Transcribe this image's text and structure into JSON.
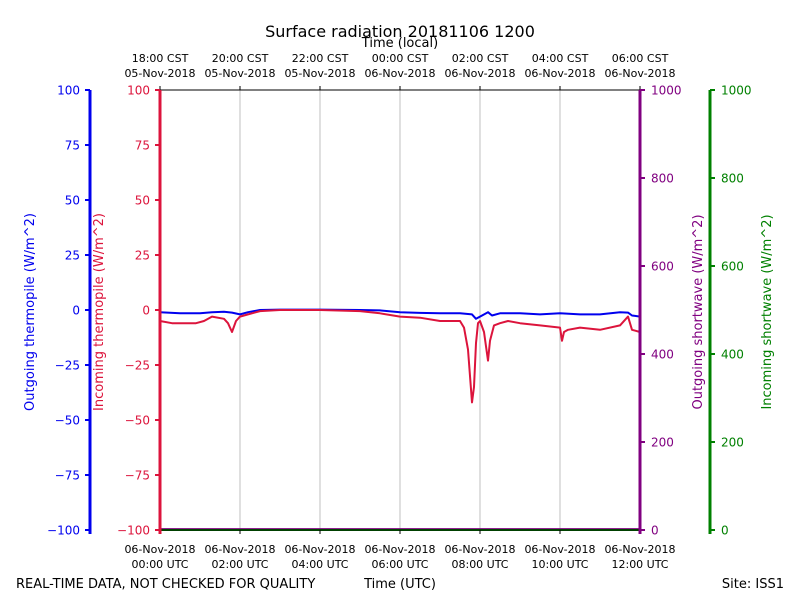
{
  "chart_data": {
    "type": "line",
    "title": "Surface radiation 20181106 1200",
    "top_axis_label": "Time (local)",
    "xlabel": "Time (UTC)",
    "footer_left": "REAL-TIME DATA, NOT CHECKED FOR QUALITY",
    "footer_right": "Site: ISS1",
    "x_hours_range": [
      0,
      12
    ],
    "top_ticks": [
      {
        "h": 0,
        "time": "18:00 CST",
        "date": "05-Nov-2018"
      },
      {
        "h": 2,
        "time": "20:00 CST",
        "date": "05-Nov-2018"
      },
      {
        "h": 4,
        "time": "22:00 CST",
        "date": "05-Nov-2018"
      },
      {
        "h": 6,
        "time": "00:00 CST",
        "date": "06-Nov-2018"
      },
      {
        "h": 8,
        "time": "02:00 CST",
        "date": "06-Nov-2018"
      },
      {
        "h": 10,
        "time": "04:00 CST",
        "date": "06-Nov-2018"
      },
      {
        "h": 12,
        "time": "06:00 CST",
        "date": "06-Nov-2018"
      }
    ],
    "bottom_ticks": [
      {
        "h": 0,
        "date": "06-Nov-2018",
        "time": "00:00 UTC"
      },
      {
        "h": 2,
        "date": "06-Nov-2018",
        "time": "02:00 UTC"
      },
      {
        "h": 4,
        "date": "06-Nov-2018",
        "time": "04:00 UTC"
      },
      {
        "h": 6,
        "date": "06-Nov-2018",
        "time": "06:00 UTC"
      },
      {
        "h": 8,
        "date": "06-Nov-2018",
        "time": "08:00 UTC"
      },
      {
        "h": 10,
        "date": "06-Nov-2018",
        "time": "10:00 UTC"
      },
      {
        "h": 12,
        "date": "06-Nov-2018",
        "time": "12:00 UTC"
      }
    ],
    "axes": {
      "outgoing_thermopile": {
        "label": "Outgoing thermopile (W/m^2)",
        "color": "#0000ee",
        "ylim": [
          -100,
          100
        ],
        "ticks": [
          100,
          75,
          50,
          25,
          0,
          -25,
          -50,
          -75,
          -100
        ]
      },
      "incoming_thermopile": {
        "label": "Incoming thermopile (W/m^2)",
        "color": "#dc143c",
        "ylim": [
          -100,
          100
        ],
        "ticks": [
          100,
          75,
          50,
          25,
          0,
          -25,
          -50,
          -75,
          -100
        ]
      },
      "outgoing_shortwave": {
        "label": "Outgoing shortwave (W/m^2)",
        "color": "#800080",
        "ylim": [
          0,
          1000
        ],
        "ticks": [
          1000,
          800,
          600,
          400,
          200,
          0
        ]
      },
      "incoming_shortwave": {
        "label": "Incoming shortwave (W/m^2)",
        "color": "#008000",
        "ylim": [
          0,
          1000
        ],
        "ticks": [
          1000,
          800,
          600,
          400,
          200,
          0
        ]
      }
    },
    "series": [
      {
        "name": "Outgoing thermopile",
        "axis": "outgoing_thermopile",
        "color": "#0000ee",
        "x": [
          0,
          0.5,
          1,
          1.3,
          1.6,
          1.8,
          2.0,
          2.2,
          2.5,
          3,
          4,
          5,
          5.5,
          6,
          6.5,
          7,
          7.5,
          7.8,
          7.9,
          8.0,
          8.2,
          8.3,
          8.5,
          9,
          9.5,
          10,
          10.5,
          11,
          11.5,
          11.7,
          11.8,
          12
        ],
        "values": [
          -1,
          -1.5,
          -1.5,
          -1,
          -0.8,
          -1.2,
          -2,
          -1,
          0,
          0.2,
          0.2,
          0,
          -0.2,
          -1,
          -1.3,
          -1.5,
          -1.5,
          -2,
          -4,
          -3,
          -1,
          -2.5,
          -1.5,
          -1.5,
          -2,
          -1.5,
          -2,
          -2,
          -1,
          -1.2,
          -2.5,
          -3
        ]
      },
      {
        "name": "Incoming thermopile",
        "axis": "incoming_thermopile",
        "color": "#dc143c",
        "x": [
          0,
          0.3,
          0.6,
          0.9,
          1.1,
          1.3,
          1.6,
          1.7,
          1.8,
          1.9,
          2.0,
          2.2,
          2.5,
          3,
          4,
          5,
          5.5,
          6,
          6.5,
          7,
          7.5,
          7.6,
          7.7,
          7.75,
          7.8,
          7.85,
          7.9,
          7.95,
          8.0,
          8.1,
          8.2,
          8.25,
          8.35,
          8.5,
          8.7,
          9,
          9.5,
          10,
          10.05,
          10.1,
          10.2,
          10.5,
          11,
          11.5,
          11.7,
          11.8,
          12
        ],
        "values": [
          -5,
          -6,
          -6,
          -6,
          -5,
          -3,
          -4,
          -6,
          -10,
          -5,
          -3,
          -2,
          -0.5,
          0,
          0,
          -0.5,
          -1.5,
          -3,
          -3.5,
          -5,
          -5,
          -8,
          -18,
          -30,
          -42,
          -35,
          -15,
          -6,
          -5,
          -10,
          -23,
          -14,
          -7,
          -6,
          -5,
          -6,
          -7,
          -8,
          -14,
          -10,
          -9,
          -8,
          -9,
          -7,
          -3,
          -9,
          -10
        ]
      },
      {
        "name": "Outgoing shortwave",
        "axis": "outgoing_shortwave",
        "color": "#800080",
        "x": [
          0,
          2,
          4,
          6,
          8,
          10,
          12
        ],
        "values": [
          2,
          2,
          2,
          2,
          2,
          2,
          2
        ]
      },
      {
        "name": "Incoming shortwave",
        "axis": "incoming_shortwave",
        "color": "#008000",
        "x": [
          0,
          2,
          4,
          6,
          8,
          10,
          12
        ],
        "values": [
          0,
          0,
          0,
          0,
          0,
          0,
          0
        ]
      }
    ]
  }
}
